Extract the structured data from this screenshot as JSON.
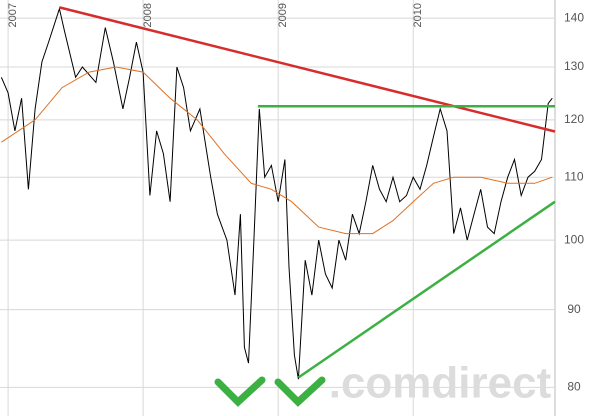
{
  "chart_data": {
    "type": "line",
    "watermark": ".comdirect",
    "log_y": true,
    "grid": true,
    "xlim": [
      2006.94,
      2011.05
    ],
    "xticks": [
      2007,
      2008,
      2009,
      2010
    ],
    "ylim": [
      76.6,
      143.9
    ],
    "yticks": [
      80,
      90,
      100,
      110,
      120,
      130,
      140
    ],
    "series": [
      {
        "color": "#000000",
        "width": 1,
        "x": [
          2006.95,
          2007.0,
          2007.05,
          2007.1,
          2007.15,
          2007.2,
          2007.25,
          2007.3,
          2007.38,
          2007.42,
          2007.5,
          2007.55,
          2007.65,
          2007.72,
          2007.78,
          2007.85,
          2007.9,
          2007.95,
          2008.0,
          2008.05,
          2008.1,
          2008.15,
          2008.2,
          2008.25,
          2008.3,
          2008.35,
          2008.42,
          2008.5,
          2008.55,
          2008.62,
          2008.68,
          2008.72,
          2008.75,
          2008.78,
          2008.82,
          2008.86,
          2008.9,
          2008.95,
          2009.0,
          2009.05,
          2009.08,
          2009.12,
          2009.15,
          2009.2,
          2009.25,
          2009.3,
          2009.35,
          2009.4,
          2009.45,
          2009.5,
          2009.55,
          2009.6,
          2009.65,
          2009.7,
          2009.75,
          2009.8,
          2009.85,
          2009.9,
          2009.95,
          2010.0,
          2010.05,
          2010.1,
          2010.15,
          2010.2,
          2010.25,
          2010.3,
          2010.35,
          2010.4,
          2010.45,
          2010.5,
          2010.55,
          2010.6,
          2010.65,
          2010.7,
          2010.75,
          2010.8,
          2010.85,
          2010.9,
          2010.95,
          2011.0,
          2011.03
        ],
        "values": [
          128,
          125,
          118,
          124,
          108,
          122,
          131,
          135,
          142,
          137,
          128,
          130,
          127,
          138,
          131,
          122,
          128,
          135,
          129,
          107,
          118,
          114,
          106,
          130,
          126,
          118,
          122,
          110,
          104,
          100,
          92,
          104,
          85,
          83,
          100,
          122,
          110,
          112,
          106,
          113,
          96,
          84,
          81,
          97,
          92,
          100,
          95,
          93,
          100,
          97,
          104,
          101,
          106,
          112,
          108,
          106,
          110,
          106,
          107,
          110,
          108,
          112,
          117,
          122,
          118,
          101,
          105,
          100,
          104,
          108,
          102,
          101,
          106,
          110,
          113,
          107,
          110,
          111,
          113,
          123,
          124
        ]
      },
      {
        "color": "#e07020",
        "width": 1,
        "x": [
          2006.95,
          2007.2,
          2007.4,
          2007.6,
          2007.8,
          2008.0,
          2008.2,
          2008.4,
          2008.6,
          2008.8,
          2008.95,
          2009.1,
          2009.3,
          2009.5,
          2009.7,
          2009.85,
          2010.0,
          2010.15,
          2010.3,
          2010.5,
          2010.7,
          2010.9,
          2011.03
        ],
        "values": [
          116,
          120,
          126,
          129,
          130,
          129,
          124,
          120,
          114,
          109,
          108,
          106,
          102,
          101,
          101,
          103,
          106,
          109,
          110,
          110,
          109,
          109,
          110
        ]
      },
      {
        "color": "#d62c2c",
        "width": 2.5,
        "x": [
          2007.38,
          2011.05
        ],
        "values": [
          142.3,
          117.9
        ]
      },
      {
        "color": "#3cb043",
        "width": 2.5,
        "x": [
          2008.85,
          2011.05
        ],
        "values": [
          122.5,
          122.5
        ]
      },
      {
        "color": "#3cb043",
        "width": 2.5,
        "x": [
          2009.15,
          2011.05
        ],
        "values": [
          81.2,
          106.0
        ]
      }
    ]
  }
}
